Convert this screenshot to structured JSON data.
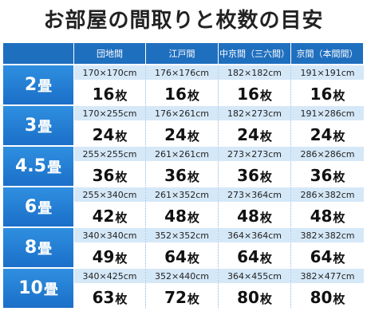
{
  "title": "お部屋の間取りと枚数の目安",
  "columns": [
    "団地間",
    "江戸間",
    "中京間（三六間）",
    "京間（本間間）"
  ],
  "rows": [
    {
      "size_num": "2",
      "size_unit": "畳",
      "cells": [
        {
          "dim": "170×170cm",
          "count": "16",
          "unit": "枚"
        },
        {
          "dim": "176×176cm",
          "count": "16",
          "unit": "枚"
        },
        {
          "dim": "182×182cm",
          "count": "16",
          "unit": "枚"
        },
        {
          "dim": "191×191cm",
          "count": "16",
          "unit": "枚"
        }
      ]
    },
    {
      "size_num": "3",
      "size_unit": "畳",
      "cells": [
        {
          "dim": "170×255cm",
          "count": "24",
          "unit": "枚"
        },
        {
          "dim": "176×261cm",
          "count": "24",
          "unit": "枚"
        },
        {
          "dim": "182×273cm",
          "count": "24",
          "unit": "枚"
        },
        {
          "dim": "191×286cm",
          "count": "24",
          "unit": "枚"
        }
      ]
    },
    {
      "size_num": "4.5",
      "size_unit": "畳",
      "cells": [
        {
          "dim": "255×255cm",
          "count": "36",
          "unit": "枚"
        },
        {
          "dim": "261×261cm",
          "count": "36",
          "unit": "枚"
        },
        {
          "dim": "273×273cm",
          "count": "36",
          "unit": "枚"
        },
        {
          "dim": "286×286cm",
          "count": "36",
          "unit": "枚"
        }
      ]
    },
    {
      "size_num": "6",
      "size_unit": "畳",
      "cells": [
        {
          "dim": "255×340cm",
          "count": "42",
          "unit": "枚"
        },
        {
          "dim": "261×352cm",
          "count": "48",
          "unit": "枚"
        },
        {
          "dim": "273×364cm",
          "count": "48",
          "unit": "枚"
        },
        {
          "dim": "286×382cm",
          "count": "48",
          "unit": "枚"
        }
      ]
    },
    {
      "size_num": "8",
      "size_unit": "畳",
      "cells": [
        {
          "dim": "340×340cm",
          "count": "49",
          "unit": "枚"
        },
        {
          "dim": "352×352cm",
          "count": "64",
          "unit": "枚"
        },
        {
          "dim": "364×364cm",
          "count": "64",
          "unit": "枚"
        },
        {
          "dim": "382×382cm",
          "count": "64",
          "unit": "枚"
        }
      ]
    },
    {
      "size_num": "10",
      "size_unit": "畳",
      "cells": [
        {
          "dim": "340×425cm",
          "count": "63",
          "unit": "枚"
        },
        {
          "dim": "352×440cm",
          "count": "72",
          "unit": "枚"
        },
        {
          "dim": "364×455cm",
          "count": "80",
          "unit": "枚"
        },
        {
          "dim": "382×477cm",
          "count": "80",
          "unit": "枚"
        }
      ]
    }
  ],
  "colors": {
    "header_blue": "#1f6fbf",
    "row_label_blue": "#2f8fe0",
    "dim_band": "#d5e8f8"
  }
}
